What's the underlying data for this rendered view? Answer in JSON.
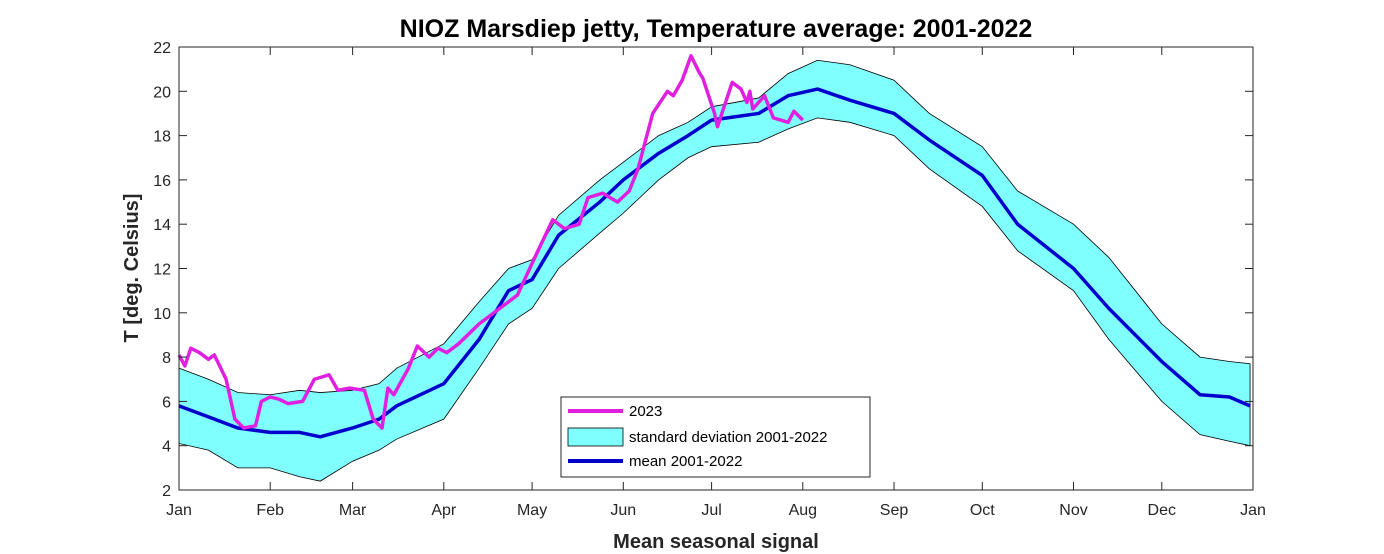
{
  "chart_data": {
    "type": "line",
    "title": "NIOZ Marsdiep jetty, Temperature average: 2001-2022",
    "xlabel": "Mean seasonal signal",
    "ylabel": "T [deg. Celsius]",
    "ylim": [
      2,
      22
    ],
    "yticks": [
      "2",
      "4",
      "6",
      "8",
      "10",
      "12",
      "14",
      "16",
      "18",
      "20",
      "22"
    ],
    "xticks": [
      "Jan",
      "Feb",
      "Mar",
      "Apr",
      "May",
      "Jun",
      "Jul",
      "Aug",
      "Sep",
      "Oct",
      "Nov",
      "Dec",
      "Jan"
    ],
    "grid": false,
    "legend_placement": "bottom-center",
    "colors": {
      "obs": "#e020e0",
      "band": "#80ffff",
      "mean": "#0000cc"
    },
    "legend": [
      "2023",
      "standard deviation 2001-2022",
      "mean 2001-2022"
    ],
    "band": {
      "name": "standard deviation 2001-2022",
      "x": [
        "01-01",
        "01-11",
        "01-21",
        "02-01",
        "02-11",
        "02-18",
        "03-01",
        "03-10",
        "03-16",
        "04-01",
        "04-13",
        "04-23",
        "05-01",
        "05-10",
        "05-24",
        "06-01",
        "06-13",
        "06-23",
        "07-01",
        "07-17",
        "07-27",
        "08-06",
        "08-17",
        "09-01",
        "09-13",
        "10-01",
        "10-13",
        "11-01",
        "11-13",
        "12-01",
        "12-14",
        "12-24",
        "12-31"
      ],
      "upper": [
        7.5,
        7.0,
        6.4,
        6.3,
        6.5,
        6.4,
        6.5,
        6.8,
        7.5,
        8.6,
        10.5,
        12.0,
        12.4,
        14.4,
        16.0,
        16.8,
        18.0,
        18.6,
        19.3,
        19.7,
        20.8,
        21.4,
        21.2,
        20.5,
        19.0,
        17.5,
        15.5,
        14.0,
        12.5,
        9.5,
        8.0,
        7.8,
        7.7
      ],
      "lower": [
        4.1,
        3.8,
        3.0,
        3.0,
        2.6,
        2.4,
        3.3,
        3.8,
        4.3,
        5.2,
        7.5,
        9.5,
        10.2,
        12.0,
        13.6,
        14.5,
        16.0,
        17.0,
        17.5,
        17.7,
        18.3,
        18.8,
        18.6,
        18.0,
        16.5,
        14.8,
        12.8,
        11.0,
        8.8,
        6.0,
        4.5,
        4.2,
        4.0
      ]
    },
    "series": [
      {
        "name": "mean 2001-2022",
        "x": [
          "01-01",
          "01-11",
          "01-21",
          "02-01",
          "02-11",
          "02-18",
          "03-01",
          "03-10",
          "03-16",
          "04-01",
          "04-13",
          "04-23",
          "05-01",
          "05-10",
          "05-24",
          "06-01",
          "06-13",
          "06-23",
          "07-01",
          "07-17",
          "07-27",
          "08-06",
          "08-17",
          "09-01",
          "09-13",
          "10-01",
          "10-13",
          "11-01",
          "11-13",
          "12-01",
          "12-14",
          "12-24",
          "12-31"
        ],
        "y": [
          5.8,
          5.3,
          4.8,
          4.6,
          4.6,
          4.4,
          4.8,
          5.2,
          5.8,
          6.8,
          8.8,
          11.0,
          11.5,
          13.5,
          15.0,
          16.0,
          17.2,
          18.0,
          18.7,
          19.0,
          19.8,
          20.1,
          19.6,
          19.0,
          17.8,
          16.2,
          14.0,
          12.0,
          10.2,
          7.8,
          6.3,
          6.2,
          5.8
        ]
      },
      {
        "name": "2023",
        "x": [
          "01-01",
          "01-03",
          "01-05",
          "01-08",
          "01-11",
          "01-13",
          "01-17",
          "01-20",
          "01-23",
          "01-27",
          "01-29",
          "02-01",
          "02-04",
          "02-07",
          "02-12",
          "02-16",
          "02-21",
          "02-24",
          "02-28",
          "03-05",
          "03-08",
          "03-11",
          "03-13",
          "03-15",
          "03-20",
          "03-23",
          "03-27",
          "03-30",
          "04-02",
          "04-06",
          "04-13",
          "04-20",
          "04-26",
          "05-03",
          "05-08",
          "05-12",
          "05-17",
          "05-20",
          "05-25",
          "05-30",
          "06-03",
          "06-06",
          "06-11",
          "06-16",
          "06-18",
          "06-21",
          "06-24",
          "06-27",
          "06-28",
          "07-02",
          "07-03",
          "07-08",
          "07-11",
          "07-13",
          "07-14",
          "07-15",
          "07-19",
          "07-22",
          "07-27",
          "07-29",
          "08-01"
        ],
        "y": [
          8.1,
          7.6,
          8.4,
          8.2,
          7.9,
          8.1,
          7.0,
          5.2,
          4.8,
          4.9,
          6.0,
          6.2,
          6.1,
          5.9,
          6.0,
          7.0,
          7.2,
          6.5,
          6.6,
          6.5,
          5.2,
          4.8,
          6.6,
          6.3,
          7.5,
          8.5,
          8.0,
          8.4,
          8.2,
          8.6,
          9.5,
          10.2,
          10.8,
          12.8,
          14.2,
          13.8,
          14.0,
          15.2,
          15.4,
          15.0,
          15.5,
          16.5,
          19.0,
          20.0,
          19.8,
          20.5,
          21.6,
          20.8,
          20.6,
          19.0,
          18.4,
          20.4,
          20.1,
          19.5,
          20.0,
          19.2,
          19.8,
          18.8,
          18.6,
          19.1,
          18.7
        ]
      }
    ]
  }
}
